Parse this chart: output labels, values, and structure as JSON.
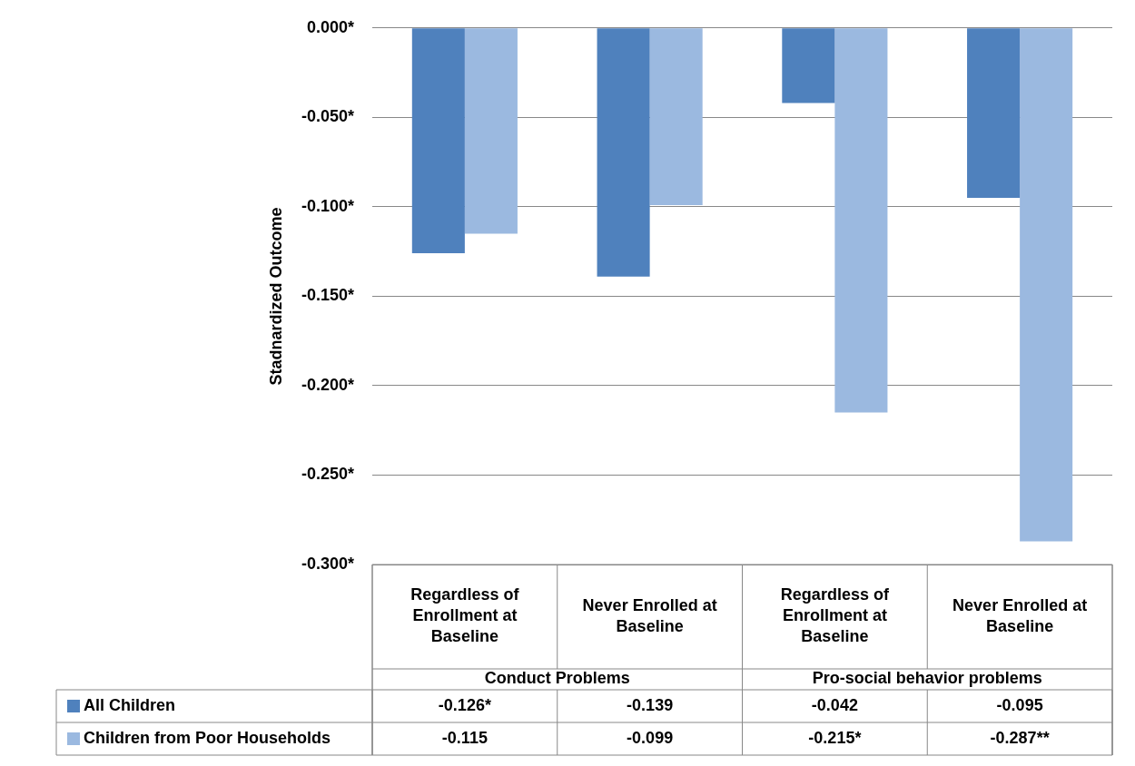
{
  "chart_data": {
    "type": "bar",
    "ylabel": "Stadnardized Outcome",
    "categories": [
      "Regardless of Enrollment at Baseline",
      "Never Enrolled at Baseline",
      "Regardless of Enrollment at Baseline",
      "Never Enrolled at Baseline"
    ],
    "series": [
      {
        "name": "All Children",
        "color": "#4f81bd",
        "values": [
          -0.126,
          -0.139,
          -0.042,
          -0.095
        ],
        "value_labels": [
          "-0.126*",
          "-0.139",
          "-0.042",
          "-0.095"
        ]
      },
      {
        "name": "Children from Poor Households",
        "color": "#9bb9e0",
        "values": [
          -0.115,
          -0.099,
          -0.215,
          -0.287
        ],
        "value_labels": [
          "-0.115",
          "-0.099",
          "-0.215*",
          "-0.287**"
        ]
      }
    ],
    "ylim": [
      -0.3,
      0
    ],
    "yticks": [
      {
        "value": 0,
        "label": "0.000*"
      },
      {
        "value": -0.05,
        "label": "-0.050*"
      },
      {
        "value": -0.1,
        "label": "-0.100*"
      },
      {
        "value": -0.15,
        "label": "-0.150*"
      },
      {
        "value": -0.2,
        "label": "-0.200*"
      },
      {
        "value": -0.25,
        "label": "-0.250*"
      },
      {
        "value": -0.3,
        "label": "-0.300*"
      }
    ],
    "annotations": [
      "Conduct Problems",
      "Pro-social behavior problems"
    ],
    "grid": "y",
    "legend": "bottom left"
  }
}
